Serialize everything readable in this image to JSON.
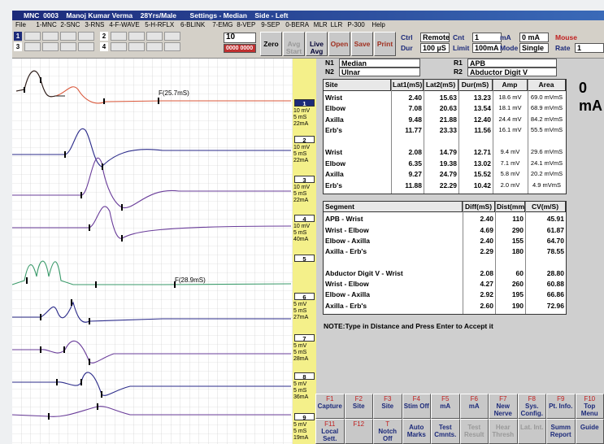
{
  "title_bar": "MNC  0003    Manoj Kumar Verma    28Yrs/Male       Settings - Median    Side - Left",
  "menu": [
    "File",
    "1-MNC",
    "2-SNC",
    "3-RNS",
    "4-F-WAVE",
    "5-H-RFLX",
    "6-BLINK",
    "7-EMG",
    "8-VEP",
    "9-SEP",
    "0-BERA",
    "MLR",
    "LLR",
    "P-300",
    "Help"
  ],
  "toolbar": {
    "channels": [
      "1",
      "2",
      "3",
      "4"
    ],
    "count": "10",
    "counter": "0000 0000",
    "buttons": [
      "Zero",
      "Avg Start",
      "Live Avg",
      "Open",
      "Save",
      "Print"
    ],
    "fields": [
      {
        "label": "Ctrl",
        "value": "Remote"
      },
      {
        "label": "Dur",
        "value": "100 µS"
      },
      {
        "label": "Cnt",
        "value": "1"
      },
      {
        "label": "Limit",
        "value": "100mA"
      },
      {
        "label": "mA",
        "value": "0 mA"
      },
      {
        "label": "Mode",
        "value": "Single"
      },
      {
        "label": "Mouse"
      },
      {
        "label": "Rate",
        "value": "1"
      }
    ]
  },
  "traces": [
    {
      "number": "1",
      "settings": [
        "10 mV",
        "5 mS",
        "22mA"
      ]
    },
    {
      "number": "2",
      "settings": [
        "10 mV",
        "5 mS",
        "22mA"
      ]
    },
    {
      "number": "3",
      "settings": [
        "10 mV",
        "5 mS",
        "22mA"
      ]
    },
    {
      "number": "4",
      "settings": [
        "10 mV",
        "5 mS",
        "40mA"
      ]
    },
    {
      "number": "5",
      "settings": []
    },
    {
      "number": "6",
      "settings": [
        "5 mV",
        "5 mS",
        "27mA"
      ]
    },
    {
      "number": "7",
      "settings": [
        "5 mV",
        "5 mS",
        "28mA"
      ]
    },
    {
      "number": "8",
      "settings": [
        "5 mV",
        "5 mS",
        "36mA"
      ]
    },
    {
      "number": "9",
      "settings": [
        "5 mV",
        "5 mS",
        "19mA"
      ]
    }
  ],
  "annotations": [
    "F(25.7mS)",
    "F(28.9mS)"
  ],
  "nerves": [
    {
      "label": "N1",
      "value": "Median"
    },
    {
      "label": "N2",
      "value": "Ulnar"
    },
    {
      "label": "R1",
      "value": "APB"
    },
    {
      "label": "R2",
      "value": "Abductor Digit V"
    }
  ],
  "latency_table": {
    "headers": [
      "Site",
      "Lat1(mS)",
      "Lat2(mS)",
      "Dur(mS)",
      "Amp",
      "Area"
    ],
    "rows": [
      [
        "Wrist",
        "2.40",
        "15.63",
        "13.23",
        "18.6 mV",
        "69.0 mVmS"
      ],
      [
        "Elbow",
        "7.08",
        "20.63",
        "13.54",
        "18.1 mV",
        "68.9 mVmS"
      ],
      [
        "Axilla",
        "9.48",
        "21.88",
        "12.40",
        "24.4 mV",
        "84.2 mVmS"
      ],
      [
        "Erb's",
        "11.77",
        "23.33",
        "11.56",
        "16.1 mV",
        "55.5 mVmS"
      ],
      [],
      [
        "Wrist",
        "2.08",
        "14.79",
        "12.71",
        "9.4 mV",
        "29.6 mVmS"
      ],
      [
        "Elbow",
        "6.35",
        "19.38",
        "13.02",
        "7.1 mV",
        "24.1 mVmS"
      ],
      [
        "Axilla",
        "9.27",
        "24.79",
        "15.52",
        "5.8 mV",
        "20.2 mVmS"
      ],
      [
        "Erb's",
        "11.88",
        "22.29",
        "10.42",
        "2.0 mV",
        "4.9 mVmS"
      ]
    ]
  },
  "current": {
    "value": "0",
    "unit": "mA"
  },
  "segment_table": {
    "headers": [
      "Segment",
      "Diff(mS)",
      "Dist(mm)",
      "CV(m/S)"
    ],
    "rows": [
      [
        "APB - Wrist",
        "2.40",
        "110",
        "45.91"
      ],
      [
        "Wrist - Elbow",
        "4.69",
        "290",
        "61.87"
      ],
      [
        "Elbow - Axilla",
        "2.40",
        "155",
        "64.70"
      ],
      [
        "Axilla - Erb's",
        "2.29",
        "180",
        "78.55"
      ],
      [],
      [
        "Abductor Digit V - Wrist",
        "2.08",
        "60",
        "28.80"
      ],
      [
        "Wrist - Elbow",
        "4.27",
        "260",
        "60.88"
      ],
      [
        "Elbow - Axilla",
        "2.92",
        "195",
        "66.86"
      ],
      [
        "Axilla - Erb's",
        "2.60",
        "190",
        "72.96"
      ]
    ]
  },
  "note": "NOTE:Type in  Distance and Press Enter to Accept it",
  "function_keys": [
    [
      {
        "key": "F1",
        "label": "Capture"
      },
      {
        "key": "F2",
        "label": "Site"
      },
      {
        "key": "F3",
        "label": "Site"
      },
      {
        "key": "F4",
        "label": "Stim Off"
      },
      {
        "key": "F5",
        "label": "mA"
      },
      {
        "key": "F6",
        "label": "mA"
      },
      {
        "key": "F7",
        "label": "New Nerve"
      },
      {
        "key": "F8",
        "label": "Sys. Config."
      },
      {
        "key": "F9",
        "label": "Pt. Info."
      },
      {
        "key": "F10",
        "label": "Top Menu"
      }
    ],
    [
      {
        "key": "F11",
        "label": "Local Sett."
      },
      {
        "key": "F12"
      },
      {
        "key": "T",
        "label": "Notch Off"
      },
      {
        "label": "Auto Marks"
      },
      {
        "label": "Test Cmnts."
      },
      {
        "label": "Test Result"
      },
      {
        "label": "Hear Thresh"
      },
      {
        "label": "Lat. Int."
      },
      {
        "label": "Summ Report"
      },
      {
        "label": "Guide"
      }
    ]
  ]
}
